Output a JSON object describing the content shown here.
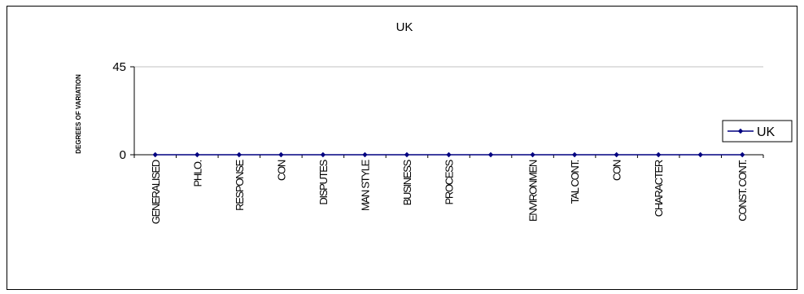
{
  "chart_data": {
    "type": "line",
    "title": "UK",
    "ylabel": "DEGREES OF VARIATION",
    "xlabel": "",
    "ylim": [
      0,
      45
    ],
    "yticks": [
      0,
      45
    ],
    "grid": true,
    "legend_position": "right",
    "tick_labels": [
      [
        "GENERALISED"
      ],
      [
        "PHLO."
      ],
      [
        "RESPONSE"
      ],
      [
        "CON"
      ],
      [
        "DISPUTES"
      ],
      [
        "MAN STYLE"
      ],
      [
        "BUSINESS"
      ],
      [
        "PROCESS"
      ],
      [
        "ENVIRONMEN"
      ],
      [
        "TAL CONT."
      ],
      [
        "CON"
      ],
      [
        "CHARACTER"
      ],
      [
        "CONST. CONT."
      ]
    ],
    "tick_label_slots": [
      0,
      1,
      2,
      3,
      4,
      5,
      6,
      7,
      9,
      10,
      11,
      12,
      14
    ],
    "series": [
      {
        "name": "UK",
        "color": "#000080",
        "values": [
          0,
          0,
          0,
          0,
          0,
          0,
          0,
          0,
          0,
          0,
          0,
          0,
          0,
          0,
          0
        ]
      }
    ]
  }
}
